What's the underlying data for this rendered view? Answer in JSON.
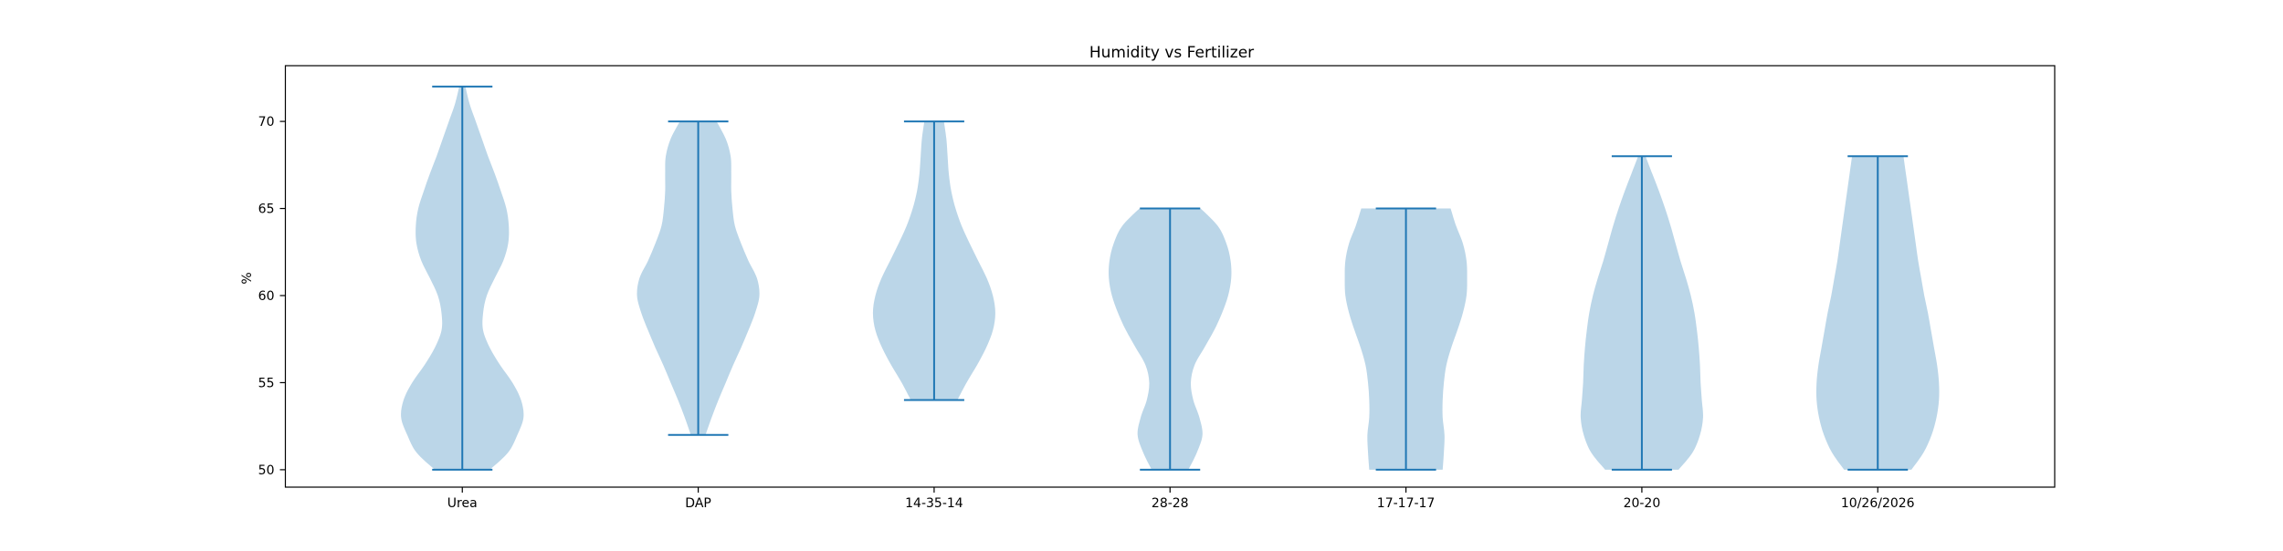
{
  "chart_data": {
    "type": "violin",
    "title": "Humidity  vs Fertilizer",
    "xlabel": "",
    "ylabel": "%",
    "categories": [
      "Urea",
      "DAP",
      "14-35-14",
      "28-28",
      "17-17-17",
      "20-20",
      "10/26/2026"
    ],
    "ylim": [
      49,
      73.2
    ],
    "yticks": [
      50,
      55,
      60,
      65,
      70
    ],
    "grid": false,
    "series": [
      {
        "category": "Urea",
        "min": 50,
        "max": 72,
        "density": [
          [
            50,
            0.45
          ],
          [
            51,
            0.75
          ],
          [
            52,
            0.9
          ],
          [
            53,
            1.0
          ],
          [
            54,
            0.96
          ],
          [
            55,
            0.82
          ],
          [
            56,
            0.62
          ],
          [
            57,
            0.45
          ],
          [
            58,
            0.34
          ],
          [
            59,
            0.34
          ],
          [
            60,
            0.4
          ],
          [
            61,
            0.53
          ],
          [
            62,
            0.67
          ],
          [
            63,
            0.75
          ],
          [
            64,
            0.76
          ],
          [
            65,
            0.72
          ],
          [
            66,
            0.63
          ],
          [
            67,
            0.53
          ],
          [
            68,
            0.42
          ],
          [
            69,
            0.32
          ],
          [
            70,
            0.22
          ],
          [
            71,
            0.12
          ],
          [
            72,
            0.05
          ]
        ]
      },
      {
        "category": "DAP",
        "min": 52,
        "max": 70,
        "density": [
          [
            52,
            0.12
          ],
          [
            53,
            0.22
          ],
          [
            54,
            0.33
          ],
          [
            55,
            0.45
          ],
          [
            56,
            0.57
          ],
          [
            57,
            0.7
          ],
          [
            58,
            0.82
          ],
          [
            59,
            0.93
          ],
          [
            60,
            1.0
          ],
          [
            61,
            0.96
          ],
          [
            62,
            0.82
          ],
          [
            63,
            0.7
          ],
          [
            64,
            0.6
          ],
          [
            65,
            0.56
          ],
          [
            66,
            0.54
          ],
          [
            67,
            0.54
          ],
          [
            68,
            0.53
          ],
          [
            69,
            0.45
          ],
          [
            70,
            0.3
          ]
        ]
      },
      {
        "category": "14-35-14",
        "min": 54,
        "max": 70,
        "density": [
          [
            54,
            0.38
          ],
          [
            55,
            0.53
          ],
          [
            56,
            0.7
          ],
          [
            57,
            0.85
          ],
          [
            58,
            0.96
          ],
          [
            59,
            1.0
          ],
          [
            60,
            0.96
          ],
          [
            61,
            0.86
          ],
          [
            62,
            0.72
          ],
          [
            63,
            0.58
          ],
          [
            64,
            0.45
          ],
          [
            65,
            0.35
          ],
          [
            66,
            0.28
          ],
          [
            67,
            0.24
          ],
          [
            68,
            0.22
          ],
          [
            69,
            0.2
          ],
          [
            70,
            0.16
          ]
        ]
      },
      {
        "category": "28-28",
        "min": 50,
        "max": 65,
        "density": [
          [
            50,
            0.3
          ],
          [
            51,
            0.44
          ],
          [
            52,
            0.53
          ],
          [
            53,
            0.48
          ],
          [
            54,
            0.38
          ],
          [
            55,
            0.34
          ],
          [
            56,
            0.4
          ],
          [
            57,
            0.56
          ],
          [
            58,
            0.72
          ],
          [
            59,
            0.85
          ],
          [
            60,
            0.95
          ],
          [
            61,
            1.0
          ],
          [
            62,
            0.99
          ],
          [
            63,
            0.92
          ],
          [
            64,
            0.78
          ],
          [
            65,
            0.5
          ]
        ]
      },
      {
        "category": "17-17-17",
        "min": 50,
        "max": 65,
        "density": [
          [
            50,
            0.6
          ],
          [
            51,
            0.62
          ],
          [
            52,
            0.63
          ],
          [
            53,
            0.6
          ],
          [
            54,
            0.6
          ],
          [
            55,
            0.62
          ],
          [
            56,
            0.66
          ],
          [
            57,
            0.74
          ],
          [
            58,
            0.84
          ],
          [
            59,
            0.93
          ],
          [
            60,
            0.99
          ],
          [
            61,
            1.0
          ],
          [
            62,
            0.99
          ],
          [
            63,
            0.93
          ],
          [
            64,
            0.82
          ],
          [
            65,
            0.73
          ]
        ]
      },
      {
        "category": "20-20",
        "min": 50,
        "max": 68,
        "density": [
          [
            50,
            0.6
          ],
          [
            51,
            0.83
          ],
          [
            52,
            0.95
          ],
          [
            53,
            1.0
          ],
          [
            54,
            0.98
          ],
          [
            55,
            0.96
          ],
          [
            56,
            0.95
          ],
          [
            57,
            0.93
          ],
          [
            58,
            0.9
          ],
          [
            59,
            0.86
          ],
          [
            60,
            0.8
          ],
          [
            61,
            0.72
          ],
          [
            62,
            0.63
          ],
          [
            63,
            0.55
          ],
          [
            64,
            0.47
          ],
          [
            65,
            0.38
          ],
          [
            66,
            0.28
          ],
          [
            67,
            0.17
          ],
          [
            68,
            0.06
          ]
        ]
      },
      {
        "category": "10/26/2026",
        "min": 50,
        "max": 68,
        "density": [
          [
            50,
            0.55
          ],
          [
            51,
            0.75
          ],
          [
            52,
            0.88
          ],
          [
            53,
            0.96
          ],
          [
            54,
            1.0
          ],
          [
            55,
            1.0
          ],
          [
            56,
            0.97
          ],
          [
            57,
            0.92
          ],
          [
            58,
            0.87
          ],
          [
            59,
            0.82
          ],
          [
            60,
            0.76
          ],
          [
            61,
            0.71
          ],
          [
            62,
            0.66
          ],
          [
            63,
            0.62
          ],
          [
            64,
            0.58
          ],
          [
            65,
            0.54
          ],
          [
            66,
            0.5
          ],
          [
            67,
            0.46
          ],
          [
            68,
            0.42
          ]
        ]
      }
    ],
    "colors": {
      "fill": "#1f77b4",
      "fill_opacity": 0.3,
      "line": "#1f77b4",
      "axes": "#000000"
    }
  }
}
